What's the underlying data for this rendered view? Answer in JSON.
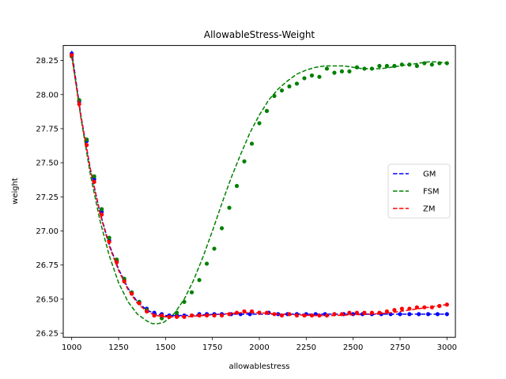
{
  "chart_data": {
    "type": "line",
    "title": "AllowableStress-Weight",
    "xlabel": "allowablestress",
    "ylabel": "weight",
    "xlim": [
      955,
      3045
    ],
    "ylim": [
      26.22,
      28.36
    ],
    "xticks": [
      1000,
      1250,
      1500,
      1750,
      2000,
      2250,
      2500,
      2750,
      3000
    ],
    "xtick_labels": [
      "1000",
      "1250",
      "1500",
      "1750",
      "2000",
      "2250",
      "2500",
      "2750",
      "3000"
    ],
    "yticks": [
      26.25,
      26.5,
      26.75,
      27.0,
      27.25,
      27.5,
      27.75,
      28.0,
      28.25
    ],
    "ytick_labels": [
      "26.25",
      "26.50",
      "26.75",
      "27.00",
      "27.25",
      "27.50",
      "27.75",
      "28.00",
      "28.25"
    ],
    "legend_position": "center-right",
    "grid": false,
    "series": [
      {
        "name": "GM",
        "color": "#0000ff",
        "line_style": "dashed",
        "points": {
          "x": [
            1000,
            1040,
            1080,
            1120,
            1160,
            1200,
            1240,
            1280,
            1320,
            1360,
            1400,
            1440,
            1480,
            1520,
            1560,
            1600,
            1640,
            1680,
            1720,
            1760,
            1800,
            1850,
            1900,
            1950,
            2000,
            2050,
            2100,
            2150,
            2200,
            2250,
            2300,
            2350,
            2400,
            2450,
            2500,
            2550,
            2600,
            2650,
            2700,
            2750,
            2800,
            2850,
            2900,
            2950,
            3000
          ],
          "y": [
            28.3,
            27.95,
            27.66,
            27.38,
            27.14,
            26.93,
            26.78,
            26.64,
            26.54,
            26.48,
            26.43,
            26.4,
            26.39,
            26.38,
            26.38,
            26.38,
            26.38,
            26.39,
            26.39,
            26.39,
            26.39,
            26.39,
            26.39,
            26.39,
            26.4,
            26.4,
            26.39,
            26.39,
            26.39,
            26.39,
            26.39,
            26.39,
            26.39,
            26.39,
            26.39,
            26.39,
            26.39,
            26.39,
            26.39,
            26.39,
            26.39,
            26.39,
            26.39,
            26.39,
            26.39
          ]
        },
        "fit": {
          "x": [
            1000,
            1050,
            1100,
            1150,
            1200,
            1250,
            1300,
            1350,
            1400,
            1450,
            1500,
            1550,
            1600,
            1700,
            1800,
            1900,
            2000,
            2200,
            2400,
            2600,
            2800,
            3000
          ],
          "y": [
            28.32,
            27.84,
            27.45,
            27.14,
            26.9,
            26.72,
            26.58,
            26.48,
            26.42,
            26.39,
            26.38,
            26.38,
            26.38,
            26.385,
            26.39,
            26.39,
            26.39,
            26.39,
            26.39,
            26.39,
            26.39,
            26.39
          ]
        }
      },
      {
        "name": "FSM",
        "color": "#008000",
        "line_style": "dashed",
        "points": {
          "x": [
            1000,
            1040,
            1080,
            1120,
            1160,
            1200,
            1240,
            1280,
            1320,
            1360,
            1400,
            1440,
            1480,
            1520,
            1560,
            1600,
            1640,
            1680,
            1720,
            1760,
            1800,
            1840,
            1880,
            1920,
            1960,
            2000,
            2040,
            2080,
            2120,
            2160,
            2200,
            2240,
            2280,
            2320,
            2360,
            2400,
            2440,
            2480,
            2520,
            2560,
            2600,
            2640,
            2680,
            2720,
            2760,
            2800,
            2840,
            2880,
            2920,
            2960,
            3000
          ],
          "y": [
            28.28,
            27.96,
            27.67,
            27.4,
            27.16,
            26.95,
            26.79,
            26.65,
            26.55,
            26.48,
            26.42,
            26.38,
            26.36,
            26.37,
            26.4,
            26.48,
            26.55,
            26.64,
            26.76,
            26.87,
            27.02,
            27.17,
            27.33,
            27.51,
            27.64,
            27.79,
            27.88,
            27.99,
            28.03,
            28.06,
            28.08,
            28.12,
            28.14,
            28.13,
            28.19,
            28.16,
            28.17,
            28.17,
            28.2,
            28.19,
            28.19,
            28.21,
            28.21,
            28.21,
            28.22,
            28.22,
            28.21,
            28.23,
            28.22,
            28.23,
            28.23
          ]
        },
        "fit": {
          "x": [
            1000,
            1050,
            1100,
            1150,
            1200,
            1250,
            1300,
            1350,
            1400,
            1430,
            1460,
            1490,
            1520,
            1550,
            1600,
            1650,
            1700,
            1750,
            1800,
            1850,
            1900,
            1950,
            2000,
            2050,
            2100,
            2150,
            2200,
            2250,
            2300,
            2350,
            2400,
            2450,
            2500,
            2550,
            2600,
            2650,
            2700,
            2750,
            2800,
            2850,
            2900,
            2950,
            3000
          ],
          "y": [
            28.3,
            27.82,
            27.41,
            27.08,
            26.82,
            26.62,
            26.48,
            26.39,
            26.34,
            26.32,
            26.32,
            26.33,
            26.36,
            26.4,
            26.5,
            26.64,
            26.81,
            27.0,
            27.2,
            27.39,
            27.56,
            27.72,
            27.85,
            27.96,
            28.04,
            28.1,
            28.15,
            28.18,
            28.2,
            28.21,
            28.21,
            28.21,
            28.2,
            28.19,
            28.19,
            28.19,
            28.2,
            28.21,
            28.22,
            28.23,
            28.24,
            28.24,
            28.23
          ]
        }
      },
      {
        "name": "ZM",
        "color": "#ff0000",
        "line_style": "dashed",
        "points": {
          "x": [
            1000,
            1040,
            1080,
            1120,
            1160,
            1200,
            1240,
            1280,
            1320,
            1360,
            1400,
            1440,
            1480,
            1520,
            1560,
            1600,
            1640,
            1680,
            1720,
            1760,
            1800,
            1840,
            1880,
            1920,
            1960,
            2000,
            2040,
            2080,
            2120,
            2160,
            2200,
            2240,
            2280,
            2320,
            2360,
            2400,
            2440,
            2480,
            2520,
            2560,
            2600,
            2640,
            2680,
            2720,
            2760,
            2800,
            2840,
            2880,
            2920,
            2960,
            3000
          ],
          "y": [
            28.29,
            27.93,
            27.63,
            27.36,
            27.12,
            26.92,
            26.77,
            26.63,
            26.54,
            26.47,
            26.41,
            26.38,
            26.38,
            26.37,
            26.37,
            26.37,
            26.38,
            26.38,
            26.38,
            26.38,
            26.38,
            26.39,
            26.4,
            26.41,
            26.41,
            26.4,
            26.4,
            26.39,
            26.38,
            26.39,
            26.38,
            26.38,
            26.38,
            26.38,
            26.38,
            26.39,
            26.39,
            26.4,
            26.4,
            26.4,
            26.4,
            26.4,
            26.41,
            26.42,
            26.43,
            26.43,
            26.44,
            26.44,
            26.44,
            26.45,
            26.46
          ]
        },
        "fit": {
          "x": [
            1000,
            1050,
            1100,
            1150,
            1200,
            1250,
            1300,
            1350,
            1400,
            1450,
            1500,
            1550,
            1600,
            1700,
            1800,
            1900,
            2000,
            2100,
            2200,
            2300,
            2400,
            2500,
            2600,
            2700,
            2800,
            2900,
            3000
          ],
          "y": [
            28.28,
            27.83,
            27.45,
            27.13,
            26.89,
            26.71,
            26.57,
            26.47,
            26.41,
            26.38,
            26.37,
            26.37,
            26.37,
            26.38,
            26.39,
            26.4,
            26.4,
            26.39,
            26.385,
            26.38,
            26.38,
            26.385,
            26.39,
            26.4,
            26.42,
            26.44,
            26.46
          ]
        }
      }
    ]
  }
}
